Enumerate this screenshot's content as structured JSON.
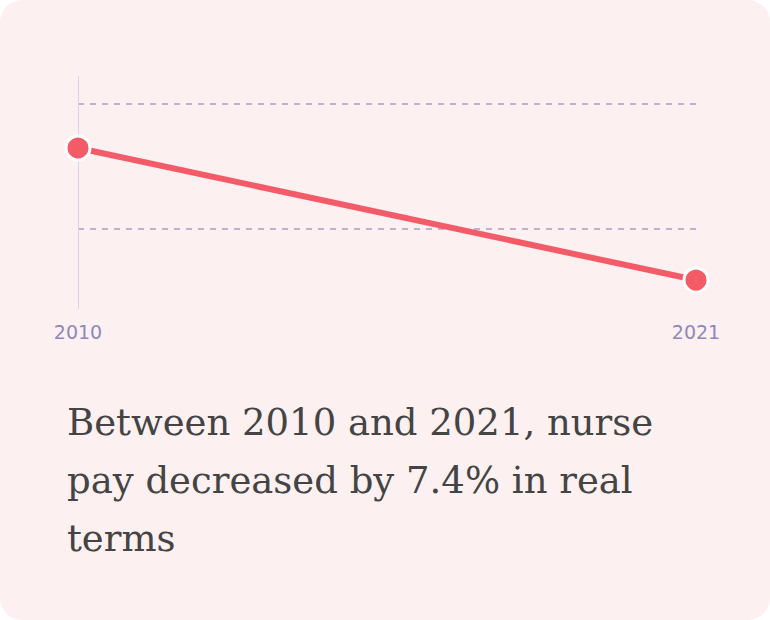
{
  "chart_data": {
    "type": "line",
    "title": "Between 2010 and 2021, nurse pay decreased by 7.4% in real terms",
    "categories": [
      "2010",
      "2021"
    ],
    "values": [
      100,
      92.6
    ],
    "color": "#f45b69",
    "ylim": [
      91,
      104
    ],
    "yticks": [
      95.5,
      102.5
    ],
    "grid": true,
    "tick_labels": "x",
    "marker": "circle",
    "line_style": "solid"
  }
}
